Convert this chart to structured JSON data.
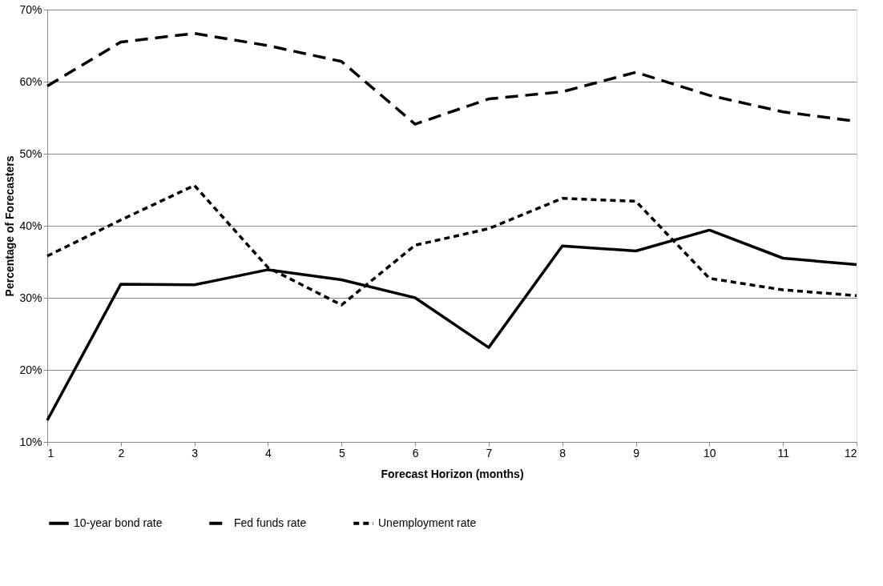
{
  "chart_data": {
    "type": "line",
    "xlabel": "Forecast Horizon (months)",
    "ylabel": "Percentage of Forecasters",
    "x": [
      1,
      2,
      3,
      4,
      5,
      6,
      7,
      8,
      9,
      10,
      11,
      12
    ],
    "xlim": [
      1,
      12
    ],
    "xticks": [
      1,
      2,
      3,
      4,
      5,
      6,
      7,
      8,
      9,
      10,
      11,
      12
    ],
    "ylim": [
      10,
      70
    ],
    "yticks": [
      {
        "value": 10,
        "label": "10%"
      },
      {
        "value": 20,
        "label": "20%"
      },
      {
        "value": 30,
        "label": "30%"
      },
      {
        "value": 40,
        "label": "40%"
      },
      {
        "value": 50,
        "label": "50%"
      },
      {
        "value": 60,
        "label": "60%"
      },
      {
        "value": 70,
        "label": "70%"
      }
    ],
    "grid": "y",
    "legend": "bottom",
    "marker": "none",
    "series": [
      {
        "name": "10-year bond rate",
        "color": "#000000",
        "line_style": "solid",
        "values": [
          13.0,
          31.9,
          31.8,
          33.9,
          32.5,
          30.0,
          23.1,
          37.2,
          36.5,
          39.4,
          35.5,
          34.6
        ]
      },
      {
        "name": "Fed funds rate",
        "color": "#000000",
        "line_style": "dashed",
        "values": [
          59.4,
          65.5,
          66.7,
          65.0,
          62.8,
          54.1,
          57.6,
          58.6,
          61.3,
          58.1,
          55.8,
          54.5
        ]
      },
      {
        "name": "Unemployment rate",
        "color": "#000000",
        "line_style": "dotted",
        "values": [
          35.8,
          40.8,
          45.6,
          34.2,
          29.0,
          37.3,
          39.6,
          43.8,
          43.4,
          32.7,
          31.1,
          30.3
        ]
      }
    ]
  }
}
